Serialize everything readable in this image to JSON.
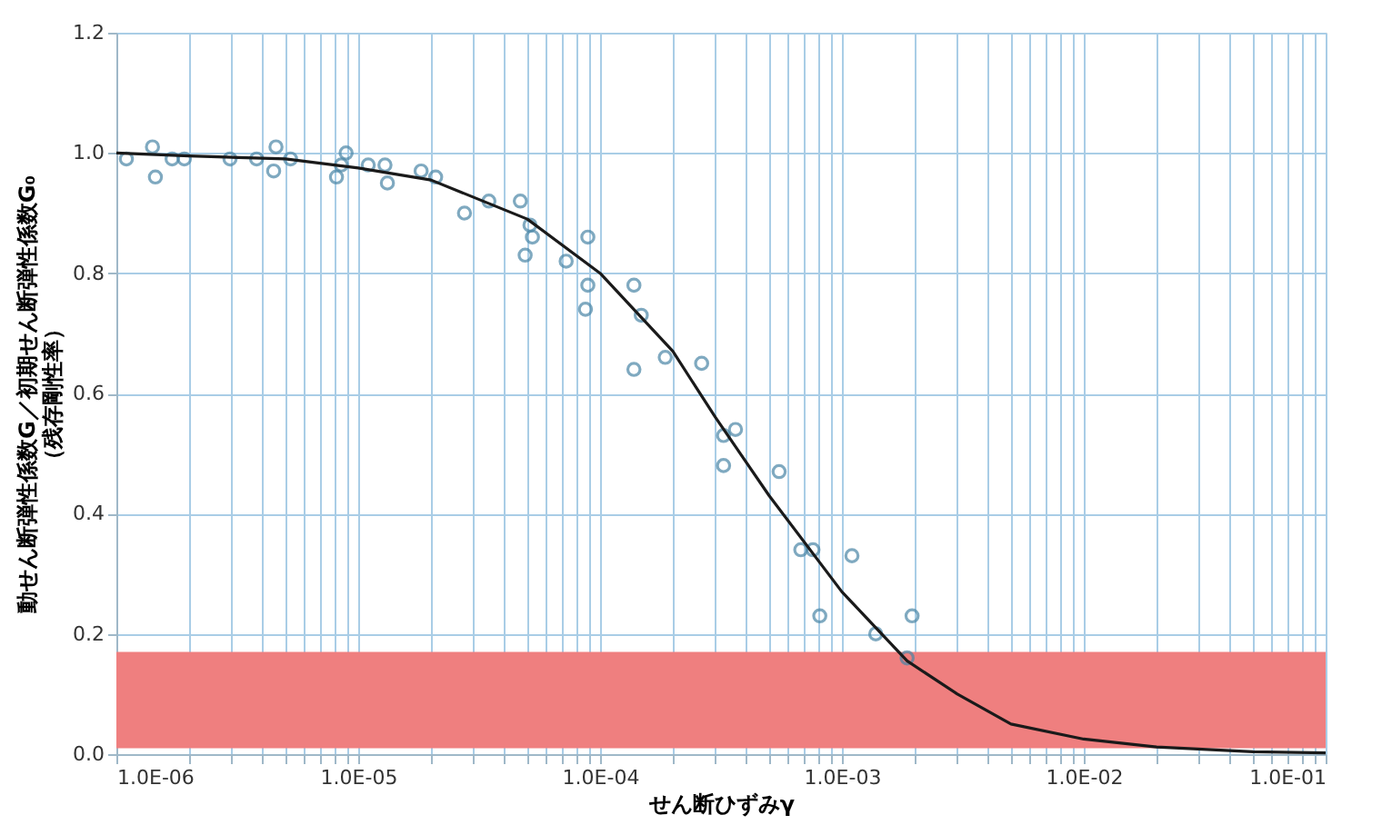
{
  "chart_data": {
    "type": "scatter",
    "xlabel": "せん断ひずみγ",
    "ylabel": "動せん断弾性係数G／初期せん断弾性係数G₀\n（残存剛性率）",
    "log": "x",
    "grid": true,
    "xlim": [
      1e-06,
      0.1
    ],
    "ylim": [
      0,
      1.2
    ],
    "xticks": [
      {
        "value": 1e-06,
        "label": "1.0E-06"
      },
      {
        "value": 2e-06,
        "label": null
      },
      {
        "value": 3e-06,
        "label": null
      },
      {
        "value": 4e-06,
        "label": null
      },
      {
        "value": 5e-06,
        "label": null
      },
      {
        "value": 6e-06,
        "label": null
      },
      {
        "value": 7e-06,
        "label": null
      },
      {
        "value": 8e-06,
        "label": null
      },
      {
        "value": 9e-06,
        "label": null
      },
      {
        "value": 1e-05,
        "label": "1.0E-05"
      },
      {
        "value": 2e-05,
        "label": null
      },
      {
        "value": 3e-05,
        "label": null
      },
      {
        "value": 4e-05,
        "label": null
      },
      {
        "value": 5e-05,
        "label": null
      },
      {
        "value": 6e-05,
        "label": null
      },
      {
        "value": 7e-05,
        "label": null
      },
      {
        "value": 8e-05,
        "label": null
      },
      {
        "value": 9e-05,
        "label": null
      },
      {
        "value": 0.0001,
        "label": "1.0E-04"
      },
      {
        "value": 0.0002,
        "label": null
      },
      {
        "value": 0.0003,
        "label": null
      },
      {
        "value": 0.0004,
        "label": null
      },
      {
        "value": 0.0005,
        "label": null
      },
      {
        "value": 0.0006,
        "label": null
      },
      {
        "value": 0.0007,
        "label": null
      },
      {
        "value": 0.0008,
        "label": null
      },
      {
        "value": 0.0009,
        "label": null
      },
      {
        "value": 0.001,
        "label": "1.0E-03"
      },
      {
        "value": 0.002,
        "label": null
      },
      {
        "value": 0.003,
        "label": null
      },
      {
        "value": 0.004,
        "label": null
      },
      {
        "value": 0.005,
        "label": null
      },
      {
        "value": 0.006,
        "label": null
      },
      {
        "value": 0.007,
        "label": null
      },
      {
        "value": 0.008,
        "label": null
      },
      {
        "value": 0.009,
        "label": null
      },
      {
        "value": 0.01,
        "label": "1.0E-02"
      },
      {
        "value": 0.02,
        "label": null
      },
      {
        "value": 0.03,
        "label": null
      },
      {
        "value": 0.04,
        "label": null
      },
      {
        "value": 0.05,
        "label": null
      },
      {
        "value": 0.06,
        "label": null
      },
      {
        "value": 0.07,
        "label": null
      },
      {
        "value": 0.08,
        "label": null
      },
      {
        "value": 0.09,
        "label": null
      },
      {
        "value": 0.1,
        "label": "1.0E-01"
      }
    ],
    "yticks": [
      {
        "value": 0,
        "label": "0.0"
      },
      {
        "value": 0.2,
        "label": "0.2"
      },
      {
        "value": 0.4,
        "label": "0.4"
      },
      {
        "value": 0.6,
        "label": "0.6"
      },
      {
        "value": 0.8,
        "label": "0.8"
      },
      {
        "value": 1.0,
        "label": "1.0"
      },
      {
        "value": 1.2,
        "label": "1.2"
      }
    ],
    "bands": [
      {
        "axis": "y",
        "from": 0.01,
        "to": 0.17,
        "color": "#ef7f7f"
      }
    ],
    "series": [
      {
        "type": "scatter",
        "marker": "circle",
        "color": "#4a86a6",
        "x": [
          1.1e-06,
          1.41e-06,
          1.45e-06,
          1.7e-06,
          1.91e-06,
          2.95e-06,
          3.8e-06,
          4.57e-06,
          4.47e-06,
          5.25e-06,
          8.13e-06,
          8.91e-06,
          8.51e-06,
          1.1e-05,
          1.29e-05,
          1.32e-05,
          1.82e-05,
          2.09e-05,
          2.75e-05,
          3.47e-05,
          4.68e-05,
          5.13e-05,
          5.25e-05,
          4.9e-05,
          7.24e-05,
          8.9e-05,
          8.9e-05,
          8.7e-05,
          0.000138,
          0.000148,
          0.000186,
          0.000138,
          0.000263,
          0.000363,
          0.000324,
          0.000324,
          0.00055,
          0.000676,
          0.000759,
          0.0011,
          0.00081,
          0.00138,
          0.00195,
          0.00186
        ],
        "values": [
          0.99,
          1.01,
          0.96,
          0.99,
          0.99,
          0.99,
          0.99,
          1.01,
          0.97,
          0.99,
          0.96,
          1.0,
          0.98,
          0.98,
          0.98,
          0.95,
          0.97,
          0.96,
          0.9,
          0.92,
          0.92,
          0.88,
          0.86,
          0.83,
          0.82,
          0.86,
          0.78,
          0.74,
          0.78,
          0.73,
          0.66,
          0.64,
          0.65,
          0.54,
          0.53,
          0.48,
          0.47,
          0.34,
          0.34,
          0.33,
          0.23,
          0.2,
          0.23,
          0.16
        ]
      },
      {
        "type": "line",
        "line_style": "solid",
        "color": "#1a1a1a",
        "x": [
          1e-06,
          2e-06,
          5e-06,
          1e-05,
          2e-05,
          5e-05,
          0.0001,
          0.0002,
          0.0003,
          0.0005,
          0.001,
          0.00186,
          0.003,
          0.005,
          0.01,
          0.02,
          0.05,
          0.1
        ],
        "values": [
          1.0,
          0.995,
          0.99,
          0.975,
          0.955,
          0.89,
          0.8,
          0.67,
          0.56,
          0.43,
          0.27,
          0.155,
          0.1,
          0.05,
          0.025,
          0.012,
          0.004,
          0.002
        ]
      }
    ]
  }
}
